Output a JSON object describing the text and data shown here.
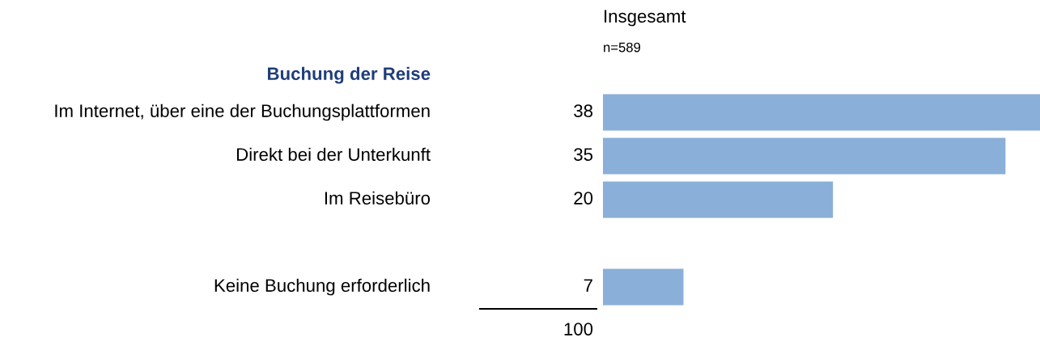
{
  "chart_data": {
    "type": "bar",
    "orientation": "horizontal",
    "title": "Insgesamt",
    "subtitle": "n=589",
    "categories": [
      "Im Internet, über eine der Buchungsplattformen",
      "Direkt bei der Unterkunft",
      "Im Reisebüro",
      null,
      "Keine Buchung erforderlich"
    ],
    "values": [
      38,
      35,
      20,
      null,
      7
    ],
    "color": "#8aafd8",
    "data_labels": true,
    "annotations": [
      "Buchung der Reise",
      "100"
    ]
  }
}
